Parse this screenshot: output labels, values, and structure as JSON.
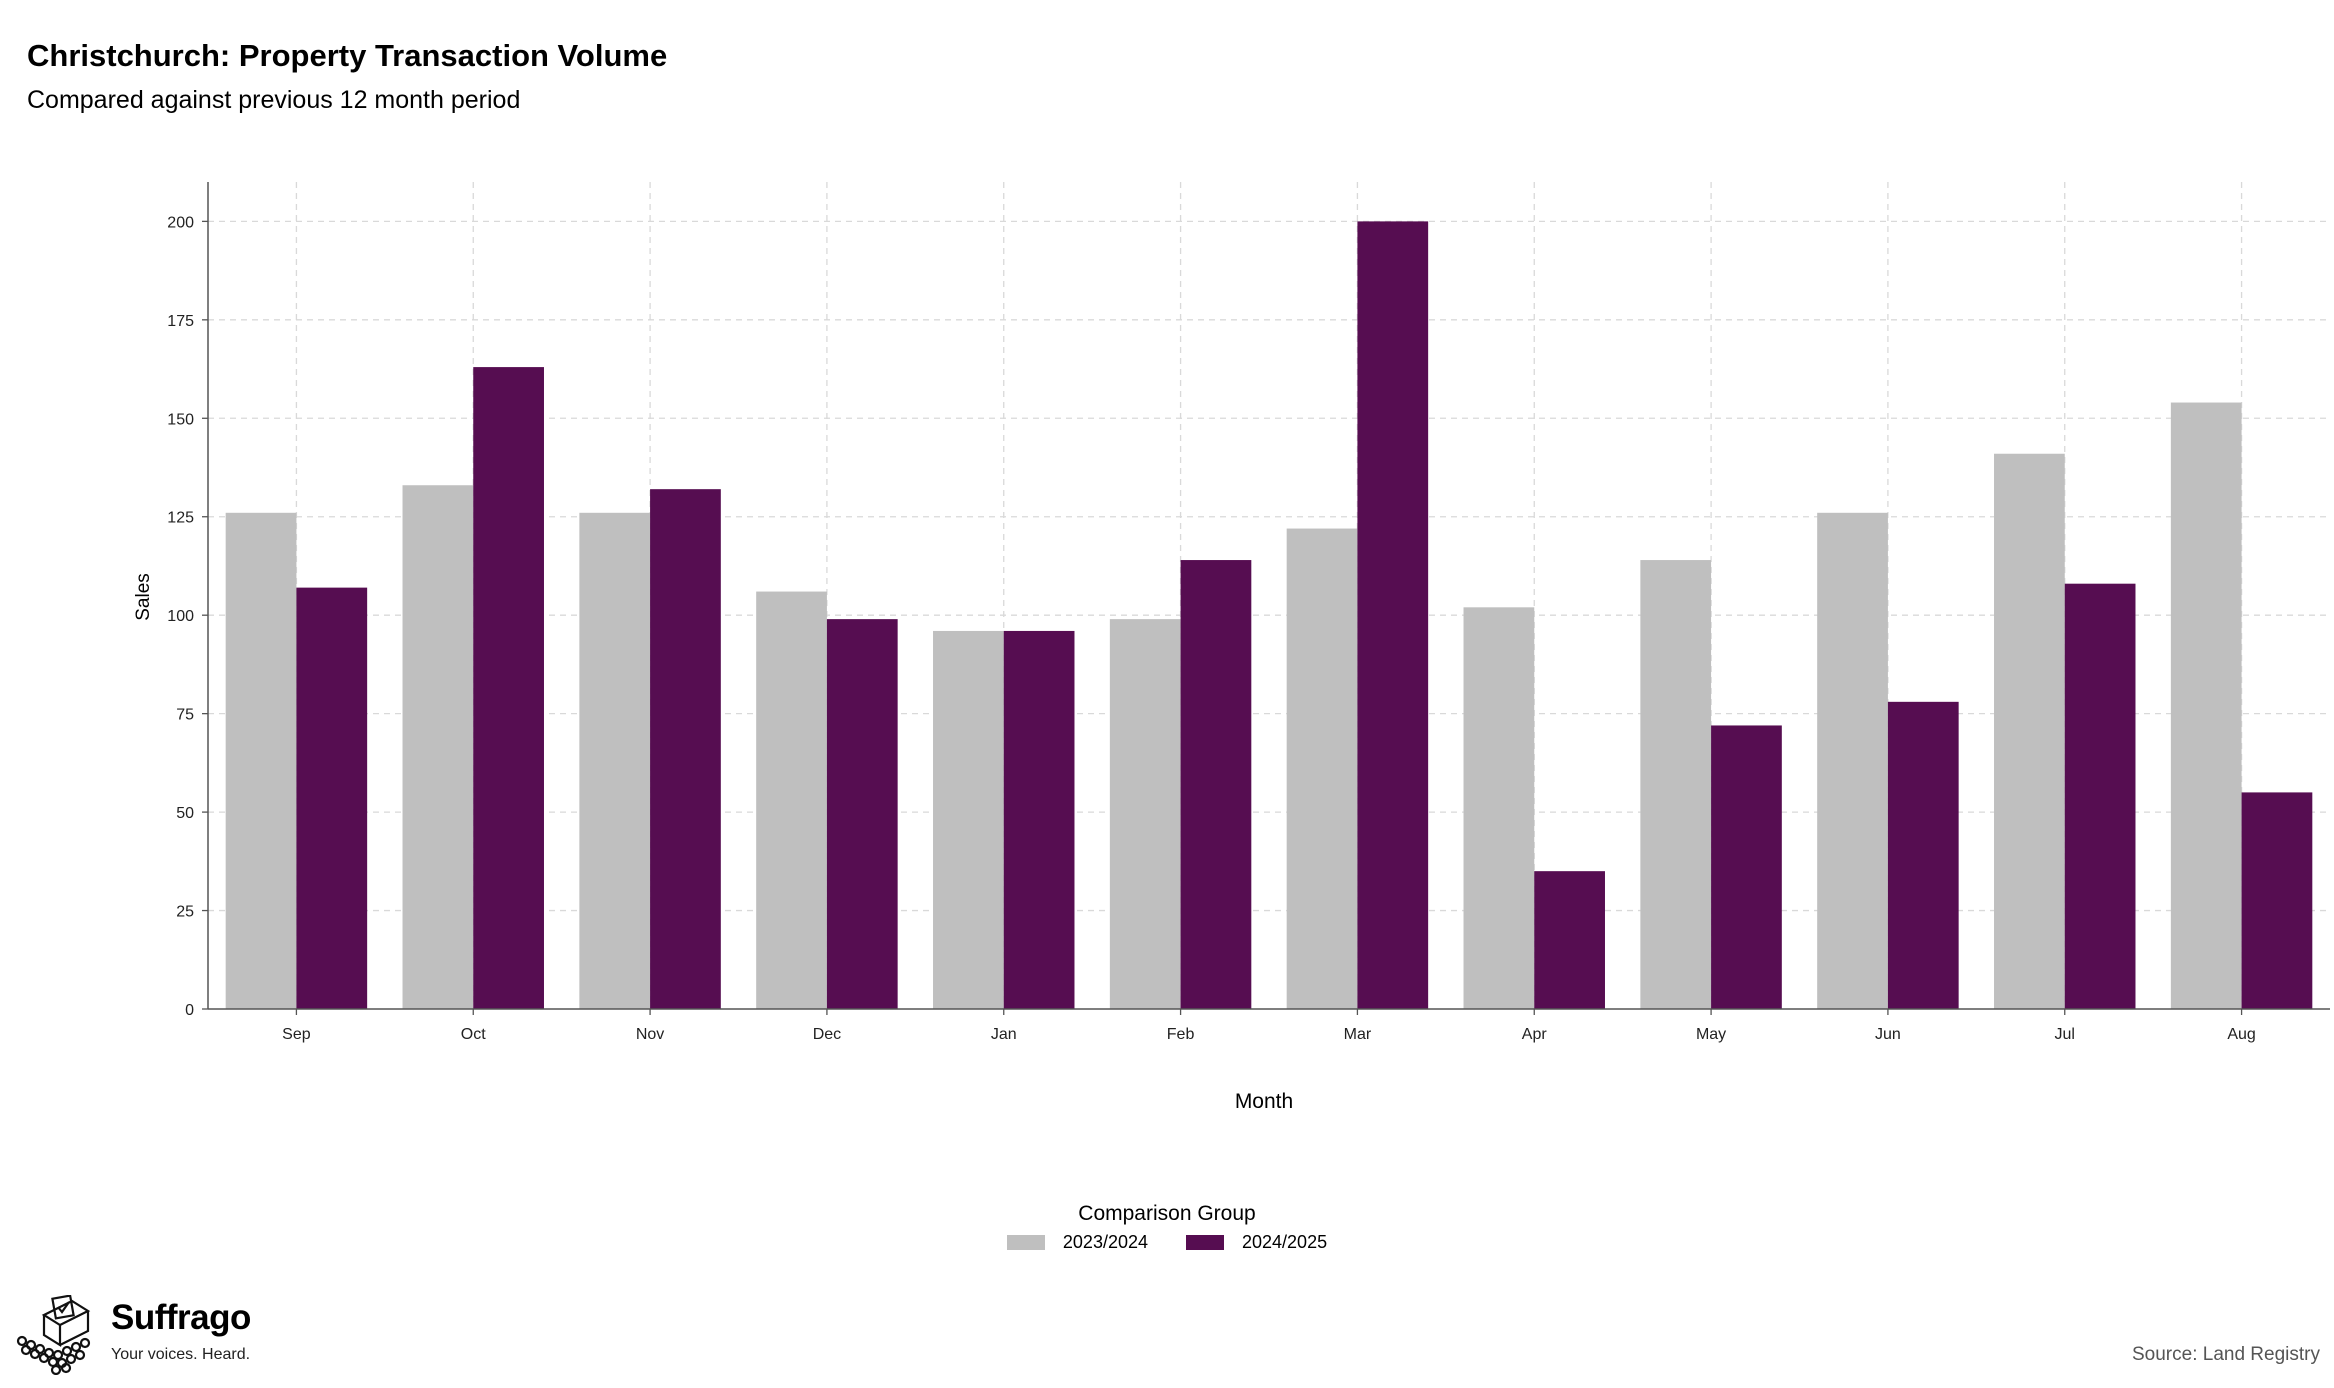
{
  "header": {
    "title": "Christchurch: Property Transaction Volume",
    "subtitle": "Compared against previous 12 month period"
  },
  "chart_data": {
    "type": "bar",
    "xlabel": "Month",
    "ylabel": "Sales",
    "ylim": [
      0,
      210
    ],
    "yticks": [
      0,
      25,
      50,
      75,
      100,
      125,
      150,
      175,
      200
    ],
    "grid": true,
    "legend_position": "bottom",
    "legend_title": "Comparison Group",
    "categories": [
      "Sep",
      "Oct",
      "Nov",
      "Dec",
      "Jan",
      "Feb",
      "Mar",
      "Apr",
      "May",
      "Jun",
      "Jul",
      "Aug"
    ],
    "series": [
      {
        "name": "2023/2024",
        "color": "#bfbfbf",
        "values": [
          126,
          133,
          126,
          106,
          96,
          99,
          122,
          102,
          114,
          126,
          141,
          154
        ]
      },
      {
        "name": "2024/2025",
        "color": "#560d51",
        "values": [
          107,
          163,
          132,
          99,
          96,
          114,
          200,
          35,
          72,
          78,
          108,
          55
        ]
      }
    ]
  },
  "branding": {
    "logo_name": "Suffrago",
    "logo_tagline": "Your voices. Heard."
  },
  "footer": {
    "source": "Source: Land Registry"
  }
}
